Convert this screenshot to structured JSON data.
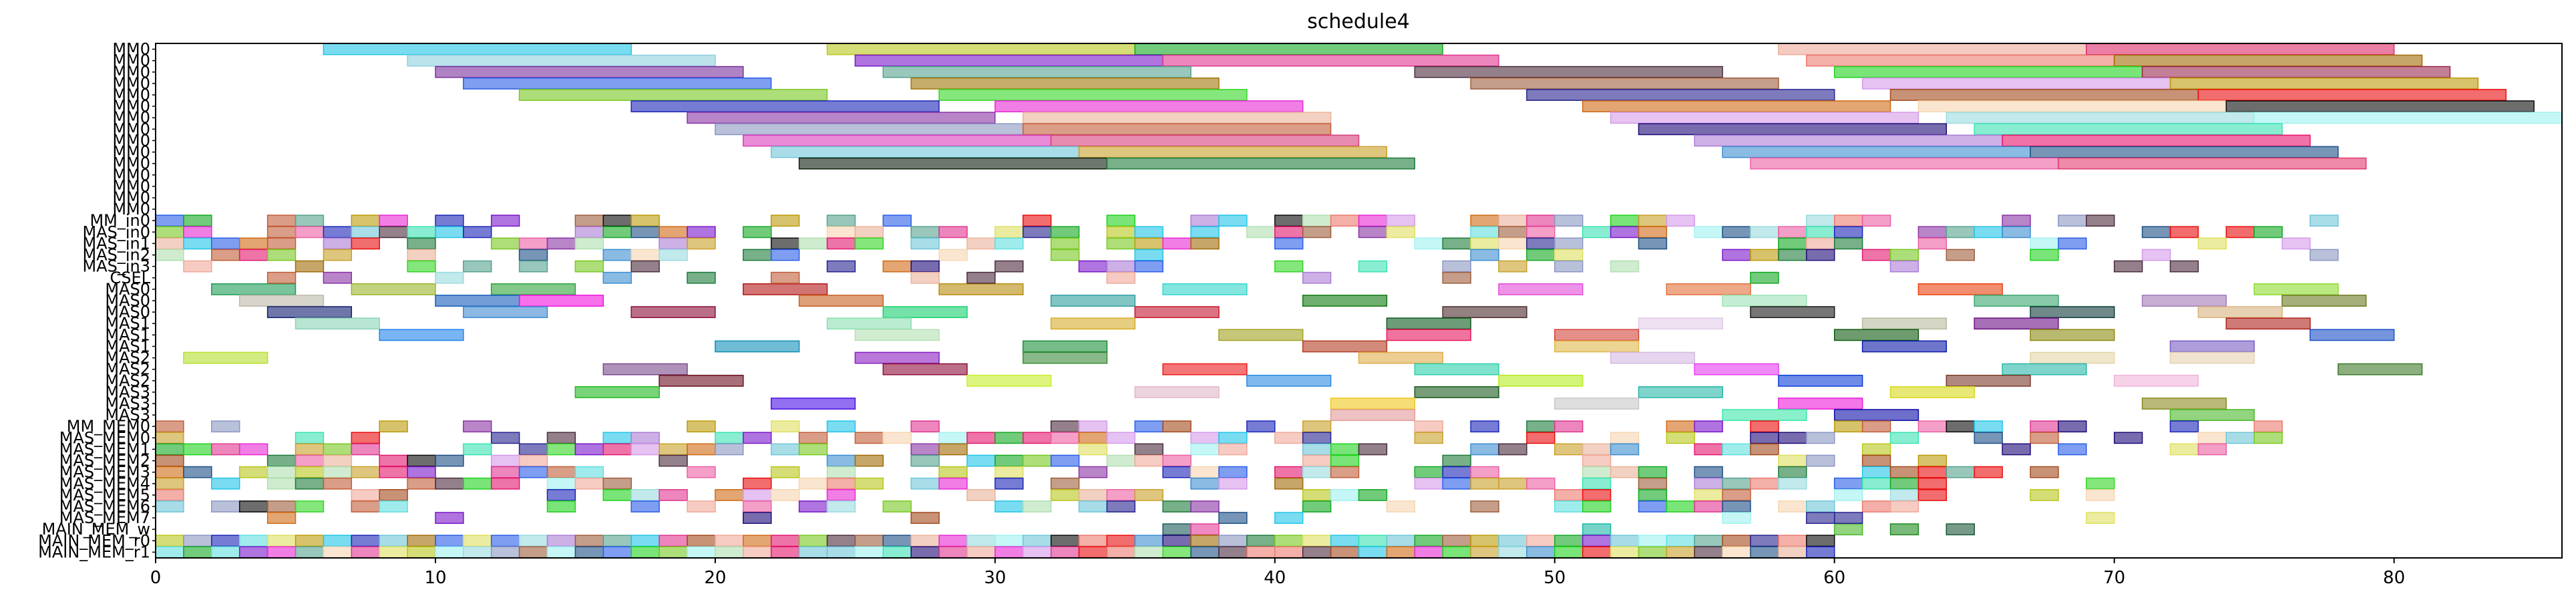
{
  "chart_data": {
    "type": "gantt",
    "title": "schedule4",
    "xlabel": "",
    "ylabel": "",
    "xlim": [
      0,
      86
    ],
    "x_ticks": [
      0,
      10,
      20,
      30,
      40,
      50,
      60,
      70,
      80
    ],
    "grid": false,
    "rows": [
      "MM0",
      "MM0",
      "MM0",
      "MM0",
      "MM0",
      "MM0",
      "MM0",
      "MM0",
      "MM0",
      "MM0",
      "MM0",
      "MM0",
      "MM0",
      "MM0",
      "MM0",
      "MM_in0",
      "MAS_in0",
      "MAS_in1",
      "MAS_in2",
      "MAS_in3",
      "CSEL",
      "MAS0",
      "MAS0",
      "MAS0",
      "MAS1",
      "MAS1",
      "MAS1",
      "MAS2",
      "MAS2",
      "MAS2",
      "MAS3",
      "MAS3",
      "MAS3",
      "MM_MEM0",
      "MAS_MEM0",
      "MAS_MEM1",
      "MAS_MEM2",
      "MAS_MEM3",
      "MAS_MEM4",
      "MAS_MEM5",
      "MAS_MEM6",
      "MAS_MEM7",
      "MAIN_MEM_w",
      "MAIN_MEM_r0",
      "MAIN_MEM_r1"
    ],
    "bars": [
      {
        "row": 0,
        "start": 6,
        "end": 17,
        "color": "#22c5e8"
      },
      {
        "row": 0,
        "start": 24,
        "end": 35,
        "color": "#b9c71a"
      },
      {
        "row": 0,
        "start": 35,
        "end": 46,
        "color": "#13a823"
      },
      {
        "row": 0,
        "start": 58,
        "end": 69,
        "color": "#f0a99a"
      },
      {
        "row": 0,
        "start": 69,
        "end": 80,
        "color": "#dd2a6a"
      },
      {
        "row": 1,
        "start": 9,
        "end": 20,
        "color": "#8fcfe0"
      },
      {
        "row": 1,
        "start": 25,
        "end": 36,
        "color": "#7a17c9"
      },
      {
        "row": 1,
        "start": 36,
        "end": 48,
        "color": "#e0358f"
      },
      {
        "row": 1,
        "start": 59,
        "end": 70,
        "color": "#ec7a70"
      },
      {
        "row": 1,
        "start": 70,
        "end": 81,
        "color": "#a16b07"
      },
      {
        "row": 2,
        "start": 10,
        "end": 21,
        "color": "#7a2f9c"
      },
      {
        "row": 2,
        "start": 26,
        "end": 37,
        "color": "#55a28e"
      },
      {
        "row": 2,
        "start": 45,
        "end": 56,
        "color": "#4b2c3d"
      },
      {
        "row": 2,
        "start": 60,
        "end": 71,
        "color": "#1fd21e"
      },
      {
        "row": 2,
        "start": 71,
        "end": 82,
        "color": "#9b2a4e"
      },
      {
        "row": 3,
        "start": 11,
        "end": 22,
        "color": "#2a5ee8"
      },
      {
        "row": 3,
        "start": 27,
        "end": 38,
        "color": "#a2770a"
      },
      {
        "row": 3,
        "start": 47,
        "end": 58,
        "color": "#9e5d3c"
      },
      {
        "row": 3,
        "start": 61,
        "end": 72,
        "color": "#d49aea"
      },
      {
        "row": 3,
        "start": 72,
        "end": 83,
        "color": "#bd9b08"
      },
      {
        "row": 4,
        "start": 13,
        "end": 24,
        "color": "#78c81f"
      },
      {
        "row": 4,
        "start": 28,
        "end": 39,
        "color": "#33d625"
      },
      {
        "row": 4,
        "start": 49,
        "end": 60,
        "color": "#27238f"
      },
      {
        "row": 4,
        "start": 62,
        "end": 73,
        "color": "#a44a1c"
      },
      {
        "row": 4,
        "start": 73,
        "end": 84,
        "color": "#ea0b0b"
      },
      {
        "row": 5,
        "start": 17,
        "end": 28,
        "color": "#1b25b8"
      },
      {
        "row": 5,
        "start": 30,
        "end": 41,
        "color": "#e828d4"
      },
      {
        "row": 5,
        "start": 51,
        "end": 62,
        "color": "#d06a14"
      },
      {
        "row": 5,
        "start": 63,
        "end": 74,
        "color": "#f6d6b0"
      },
      {
        "row": 5,
        "start": 74,
        "end": 85,
        "color": "#0b0b0b"
      },
      {
        "row": 6,
        "start": 19,
        "end": 30,
        "color": "#8a33a5"
      },
      {
        "row": 6,
        "start": 31,
        "end": 42,
        "color": "#eab39a"
      },
      {
        "row": 6,
        "start": 52,
        "end": 63,
        "color": "#d59be7"
      },
      {
        "row": 6,
        "start": 64,
        "end": 75,
        "color": "#9adbe0"
      },
      {
        "row": 6,
        "start": 75,
        "end": 86,
        "color": "#9ff2f0"
      },
      {
        "row": 7,
        "start": 20,
        "end": 31,
        "color": "#8b96c2"
      },
      {
        "row": 7,
        "start": 31,
        "end": 42,
        "color": "#c25d38"
      },
      {
        "row": 7,
        "start": 53,
        "end": 64,
        "color": "#1f0a78"
      },
      {
        "row": 7,
        "start": 65,
        "end": 76,
        "color": "#3ae3b2"
      },
      {
        "row": 8,
        "start": 21,
        "end": 32,
        "color": "#d83cb9"
      },
      {
        "row": 8,
        "start": 32,
        "end": 43,
        "color": "#d63e7a"
      },
      {
        "row": 8,
        "start": 55,
        "end": 66,
        "color": "#ab7cd6"
      },
      {
        "row": 8,
        "start": 66,
        "end": 77,
        "color": "#e8146b"
      },
      {
        "row": 9,
        "start": 22,
        "end": 33,
        "color": "#6ec6d8"
      },
      {
        "row": 9,
        "start": 33,
        "end": 44,
        "color": "#c9a02a"
      },
      {
        "row": 9,
        "start": 56,
        "end": 67,
        "color": "#3c8ed0"
      },
      {
        "row": 9,
        "start": 67,
        "end": 78,
        "color": "#1d4f85"
      },
      {
        "row": 10,
        "start": 23,
        "end": 34,
        "color": "#0b1d0b"
      },
      {
        "row": 10,
        "start": 34,
        "end": 45,
        "color": "#1d7b3a"
      },
      {
        "row": 10,
        "start": 57,
        "end": 68,
        "color": "#ec5fa4"
      },
      {
        "row": 10,
        "start": 68,
        "end": 79,
        "color": "#e23a6e"
      },
      {
        "row": 21,
        "start": 2,
        "end": 5,
        "color": "#1f9d56"
      },
      {
        "row": 21,
        "start": 7,
        "end": 10,
        "color": "#9ab52a"
      },
      {
        "row": 21,
        "start": 12,
        "end": 15,
        "color": "#2fa43b"
      },
      {
        "row": 21,
        "start": 21,
        "end": 24,
        "color": "#b51818"
      },
      {
        "row": 21,
        "start": 28,
        "end": 31,
        "color": "#b88c0e"
      },
      {
        "row": 21,
        "start": 36,
        "end": 39,
        "color": "#33d6cc"
      },
      {
        "row": 21,
        "start": 48,
        "end": 51,
        "color": "#e24cd9"
      },
      {
        "row": 21,
        "start": 54,
        "end": 57,
        "color": "#e26f3a"
      },
      {
        "row": 21,
        "start": 63,
        "end": 66,
        "color": "#e8430f"
      },
      {
        "row": 21,
        "start": 75,
        "end": 78,
        "color": "#8fdc2e"
      },
      {
        "row": 22,
        "start": 3,
        "end": 6,
        "color": "#bcb8a8"
      },
      {
        "row": 22,
        "start": 10,
        "end": 13,
        "color": "#155cba"
      },
      {
        "row": 22,
        "start": 13,
        "end": 16,
        "color": "#f211df"
      },
      {
        "row": 22,
        "start": 23,
        "end": 26,
        "color": "#c8611e"
      },
      {
        "row": 22,
        "start": 32,
        "end": 35,
        "color": "#2f9e9e"
      },
      {
        "row": 22,
        "start": 41,
        "end": 44,
        "color": "#0f7a0f"
      },
      {
        "row": 22,
        "start": 56,
        "end": 59,
        "color": "#9ce3b6"
      },
      {
        "row": 22,
        "start": 65,
        "end": 68,
        "color": "#3aa86e"
      },
      {
        "row": 22,
        "start": 71,
        "end": 74,
        "color": "#a27ab8"
      },
      {
        "row": 22,
        "start": 76,
        "end": 79,
        "color": "#6b7a22"
      },
      {
        "row": 23,
        "start": 4,
        "end": 7,
        "color": "#0f1d6e"
      },
      {
        "row": 23,
        "start": 11,
        "end": 14,
        "color": "#3d8ad0"
      },
      {
        "row": 23,
        "start": 17,
        "end": 20,
        "color": "#8e0e3a"
      },
      {
        "row": 23,
        "start": 26,
        "end": 29,
        "color": "#16d16e"
      },
      {
        "row": 23,
        "start": 35,
        "end": 38,
        "color": "#c3172e"
      },
      {
        "row": 23,
        "start": 46,
        "end": 49,
        "color": "#4b2c2c"
      },
      {
        "row": 23,
        "start": 57,
        "end": 60,
        "color": "#1a1a1a"
      },
      {
        "row": 23,
        "start": 67,
        "end": 70,
        "color": "#0f3a3a"
      },
      {
        "row": 23,
        "start": 73,
        "end": 76,
        "color": "#d7b27e"
      },
      {
        "row": 24,
        "start": 5,
        "end": 8,
        "color": "#8ad4b6"
      },
      {
        "row": 24,
        "start": 24,
        "end": 27,
        "color": "#8be0b0"
      },
      {
        "row": 24,
        "start": 32,
        "end": 35,
        "color": "#d6ac29"
      },
      {
        "row": 24,
        "start": 44,
        "end": 47,
        "color": "#0e5a1f"
      },
      {
        "row": 24,
        "start": 53,
        "end": 56,
        "color": "#e3cbe8"
      },
      {
        "row": 24,
        "start": 61,
        "end": 64,
        "color": "#b9b9a0"
      },
      {
        "row": 24,
        "start": 65,
        "end": 68,
        "color": "#6b0f84"
      },
      {
        "row": 24,
        "start": 74,
        "end": 77,
        "color": "#b0221a"
      },
      {
        "row": 25,
        "start": 8,
        "end": 11,
        "color": "#1f84ea"
      },
      {
        "row": 25,
        "start": 25,
        "end": 28,
        "color": "#b4e0b4"
      },
      {
        "row": 25,
        "start": 38,
        "end": 41,
        "color": "#a1a21f"
      },
      {
        "row": 25,
        "start": 44,
        "end": 47,
        "color": "#e8185e"
      },
      {
        "row": 25,
        "start": 50,
        "end": 53,
        "color": "#d4453a"
      },
      {
        "row": 25,
        "start": 60,
        "end": 63,
        "color": "#0f5a0f"
      },
      {
        "row": 25,
        "start": 67,
        "end": 70,
        "color": "#8c8a10"
      },
      {
        "row": 25,
        "start": 77,
        "end": 80,
        "color": "#1a4fc8"
      },
      {
        "row": 26,
        "start": 20,
        "end": 23,
        "color": "#0f8fb8"
      },
      {
        "row": 26,
        "start": 31,
        "end": 34,
        "color": "#1a8f3a"
      },
      {
        "row": 26,
        "start": 41,
        "end": 44,
        "color": "#b43c22"
      },
      {
        "row": 26,
        "start": 50,
        "end": 53,
        "color": "#e0b74a"
      },
      {
        "row": 26,
        "start": 61,
        "end": 64,
        "color": "#0d1aa8"
      },
      {
        "row": 26,
        "start": 72,
        "end": 75,
        "color": "#7a5cc2"
      },
      {
        "row": 27,
        "start": 1,
        "end": 4,
        "color": "#b6e02f"
      },
      {
        "row": 27,
        "start": 25,
        "end": 28,
        "color": "#8a1ec2"
      },
      {
        "row": 27,
        "start": 31,
        "end": 34,
        "color": "#3a8a3a"
      },
      {
        "row": 27,
        "start": 43,
        "end": 46,
        "color": "#e0ab4a"
      },
      {
        "row": 27,
        "start": 52,
        "end": 55,
        "color": "#d4b9e2"
      },
      {
        "row": 27,
        "start": 67,
        "end": 70,
        "color": "#e4d6a8"
      },
      {
        "row": 27,
        "start": 72,
        "end": 75,
        "color": "#e6d2b2"
      },
      {
        "row": 28,
        "start": 16,
        "end": 19,
        "color": "#7a4a8a"
      },
      {
        "row": 28,
        "start": 26,
        "end": 29,
        "color": "#8e0e3a"
      },
      {
        "row": 28,
        "start": 36,
        "end": 39,
        "color": "#ed1a1a"
      },
      {
        "row": 28,
        "start": 45,
        "end": 48,
        "color": "#2ad0aa"
      },
      {
        "row": 28,
        "start": 55,
        "end": 58,
        "color": "#e63cf0"
      },
      {
        "row": 28,
        "start": 66,
        "end": 69,
        "color": "#2ab8a8"
      },
      {
        "row": 28,
        "start": 78,
        "end": 81,
        "color": "#3d7a2a"
      },
      {
        "row": 29,
        "start": 18,
        "end": 21,
        "color": "#6b0f1f"
      },
      {
        "row": 29,
        "start": 29,
        "end": 32,
        "color": "#c7ef2a"
      },
      {
        "row": 29,
        "start": 39,
        "end": 42,
        "color": "#2a8ae3"
      },
      {
        "row": 29,
        "start": 48,
        "end": 51,
        "color": "#b6ec1f"
      },
      {
        "row": 29,
        "start": 58,
        "end": 61,
        "color": "#0d3dd8"
      },
      {
        "row": 29,
        "start": 64,
        "end": 67,
        "color": "#7a3a2a"
      },
      {
        "row": 29,
        "start": 70,
        "end": 73,
        "color": "#f0b4d8"
      },
      {
        "row": 30,
        "start": 15,
        "end": 18,
        "color": "#1fb71f"
      },
      {
        "row": 30,
        "start": 35,
        "end": 38,
        "color": "#e0b8c8"
      },
      {
        "row": 30,
        "start": 45,
        "end": 48,
        "color": "#1a5a1f"
      },
      {
        "row": 30,
        "start": 53,
        "end": 56,
        "color": "#2ab8a8"
      },
      {
        "row": 30,
        "start": 62,
        "end": 65,
        "color": "#d9d91a"
      },
      {
        "row": 31,
        "start": 22,
        "end": 25,
        "color": "#4a0fe8"
      },
      {
        "row": 31,
        "start": 42,
        "end": 45,
        "color": "#f0c81a"
      },
      {
        "row": 31,
        "start": 50,
        "end": 53,
        "color": "#c8c8c8"
      },
      {
        "row": 31,
        "start": 58,
        "end": 61,
        "color": "#ec1ad8"
      },
      {
        "row": 31,
        "start": 71,
        "end": 74,
        "color": "#8a8a1f"
      },
      {
        "row": 32,
        "start": 42,
        "end": 45,
        "color": "#e39a9a"
      },
      {
        "row": 32,
        "start": 56,
        "end": 59,
        "color": "#3ae6a8"
      },
      {
        "row": 32,
        "start": 60,
        "end": 63,
        "color": "#0d0da8"
      },
      {
        "row": 32,
        "start": 72,
        "end": 75,
        "color": "#4ab82a"
      },
      {
        "row": 42,
        "start": 36,
        "end": 37,
        "color": "#1a5a5a"
      },
      {
        "row": 42,
        "start": 37,
        "end": 38,
        "color": "#e63c9a"
      },
      {
        "row": 42,
        "start": 51,
        "end": 52,
        "color": "#1ab8a8"
      },
      {
        "row": 42,
        "start": 60,
        "end": 61,
        "color": "#4ab82a"
      },
      {
        "row": 42,
        "start": 62,
        "end": 63,
        "color": "#1f8a1f"
      },
      {
        "row": 42,
        "start": 64,
        "end": 65,
        "color": "#1a5a3a"
      }
    ],
    "slot_rows": [
      15,
      16,
      17,
      18,
      19,
      20,
      33,
      34,
      35,
      36,
      37,
      38,
      39,
      40,
      41,
      43,
      44
    ],
    "slot_fill": [
      0.45,
      0.6,
      0.4,
      0.4,
      0.25,
      0.1,
      0.35,
      0.55,
      0.45,
      0.4,
      0.5,
      0.5,
      0.45,
      0.45,
      0.15,
      1.0,
      1.0
    ],
    "slot_xmax": [
      79,
      78,
      78,
      78,
      74,
      65,
      76,
      76,
      74,
      68,
      69,
      70,
      71,
      69,
      73,
      60,
      60
    ],
    "slot_seed": [
      11,
      23,
      37,
      41,
      53,
      67,
      71,
      83,
      97,
      101,
      113,
      127,
      131,
      149,
      151,
      163,
      173
    ],
    "palette": [
      "#e3176e",
      "#22c5e8",
      "#b9c71a",
      "#13a823",
      "#f0a99a",
      "#7a17c9",
      "#e0358f",
      "#ec7a70",
      "#a16b07",
      "#55a28e",
      "#4b2c3d",
      "#1fd21e",
      "#2a5ee8",
      "#9e5d3c",
      "#d49aea",
      "#bd9b08",
      "#78c81f",
      "#33d625",
      "#27238f",
      "#a44a1c",
      "#ea0b0b",
      "#1b25b8",
      "#e828d4",
      "#d06a14",
      "#f6d6b0",
      "#0b0b0b",
      "#8a33a5",
      "#eab39a",
      "#9adbe0",
      "#3ae3b2",
      "#8b96c2",
      "#c25d38",
      "#1f0a78",
      "#ab7cd6",
      "#6ec6d8",
      "#c9a02a",
      "#3c8ed0",
      "#1d4f85",
      "#1d7b3a",
      "#ec5fa4",
      "#9ff2f0",
      "#e0e060",
      "#60e0e0",
      "#b0e0b0"
    ]
  }
}
